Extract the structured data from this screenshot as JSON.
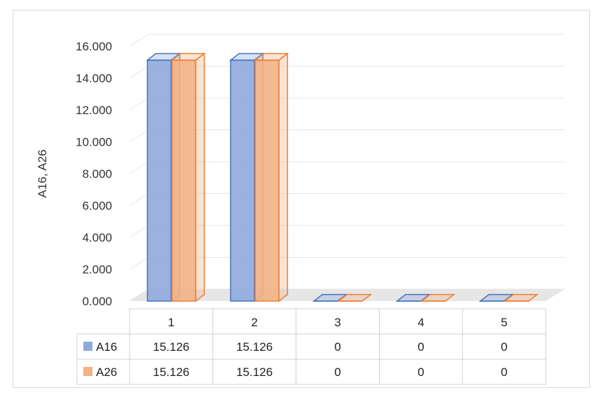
{
  "chart_data": {
    "type": "bar",
    "style": "3d-clustered-column-with-data-table",
    "title": "",
    "xlabel": "",
    "ylabel": "A16, A26",
    "categories": [
      "1",
      "2",
      "3",
      "4",
      "5"
    ],
    "series": [
      {
        "name": "A16",
        "values": [
          15.126,
          15.126,
          0,
          0,
          0
        ],
        "color": "#4472c4",
        "fill": "#8eaadb"
      },
      {
        "name": "A26",
        "values": [
          15.126,
          15.126,
          0,
          0,
          0
        ],
        "color": "#ed7d31",
        "fill": "#f4b183"
      }
    ],
    "table_values": [
      [
        "15.126",
        "15.126",
        "0",
        "0",
        "0"
      ],
      [
        "15.126",
        "15.126",
        "0",
        "0",
        "0"
      ]
    ],
    "ylim": [
      0,
      16
    ],
    "yticks": [
      "0.000",
      "2.000",
      "4.000",
      "6.000",
      "8.000",
      "10.000",
      "12.000",
      "14.000",
      "16.000"
    ],
    "grid": true,
    "legend": "data-table"
  }
}
